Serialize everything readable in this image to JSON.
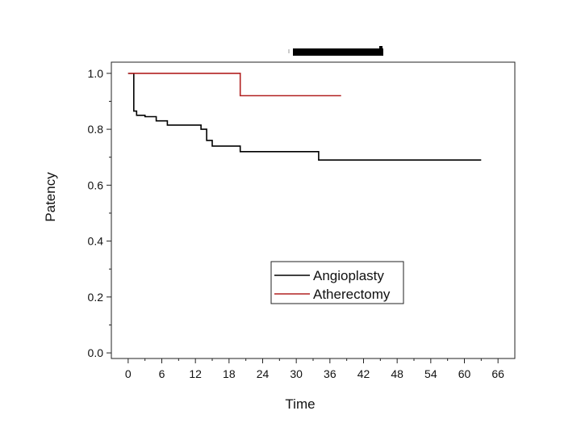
{
  "chart_data": {
    "type": "line",
    "subtype": "step",
    "title": "",
    "xlabel": "Time",
    "ylabel": "Patency",
    "xlim": [
      -3,
      69
    ],
    "ylim": [
      -0.02,
      1.04
    ],
    "x_ticks": [
      0,
      6,
      12,
      18,
      24,
      30,
      36,
      42,
      48,
      54,
      60,
      66
    ],
    "y_ticks": [
      0.0,
      0.2,
      0.4,
      0.6,
      0.8,
      1.0
    ],
    "y_tick_labels": [
      "0.0",
      "0.2",
      "0.4",
      "0.6",
      "0.8",
      "1.0"
    ],
    "grid": false,
    "legend_position": "lower-center",
    "series": [
      {
        "name": "Angioplasty",
        "color": "#000000",
        "x": [
          0,
          1,
          1.5,
          3,
          5,
          7,
          13,
          14,
          15,
          20,
          34,
          63
        ],
        "y": [
          1.0,
          0.865,
          0.85,
          0.845,
          0.83,
          0.815,
          0.8,
          0.76,
          0.74,
          0.72,
          0.69,
          0.69
        ]
      },
      {
        "name": "Atherectomy",
        "color": "#b22222",
        "x": [
          0,
          20,
          38
        ],
        "y": [
          1.0,
          0.92,
          0.92
        ]
      }
    ]
  }
}
